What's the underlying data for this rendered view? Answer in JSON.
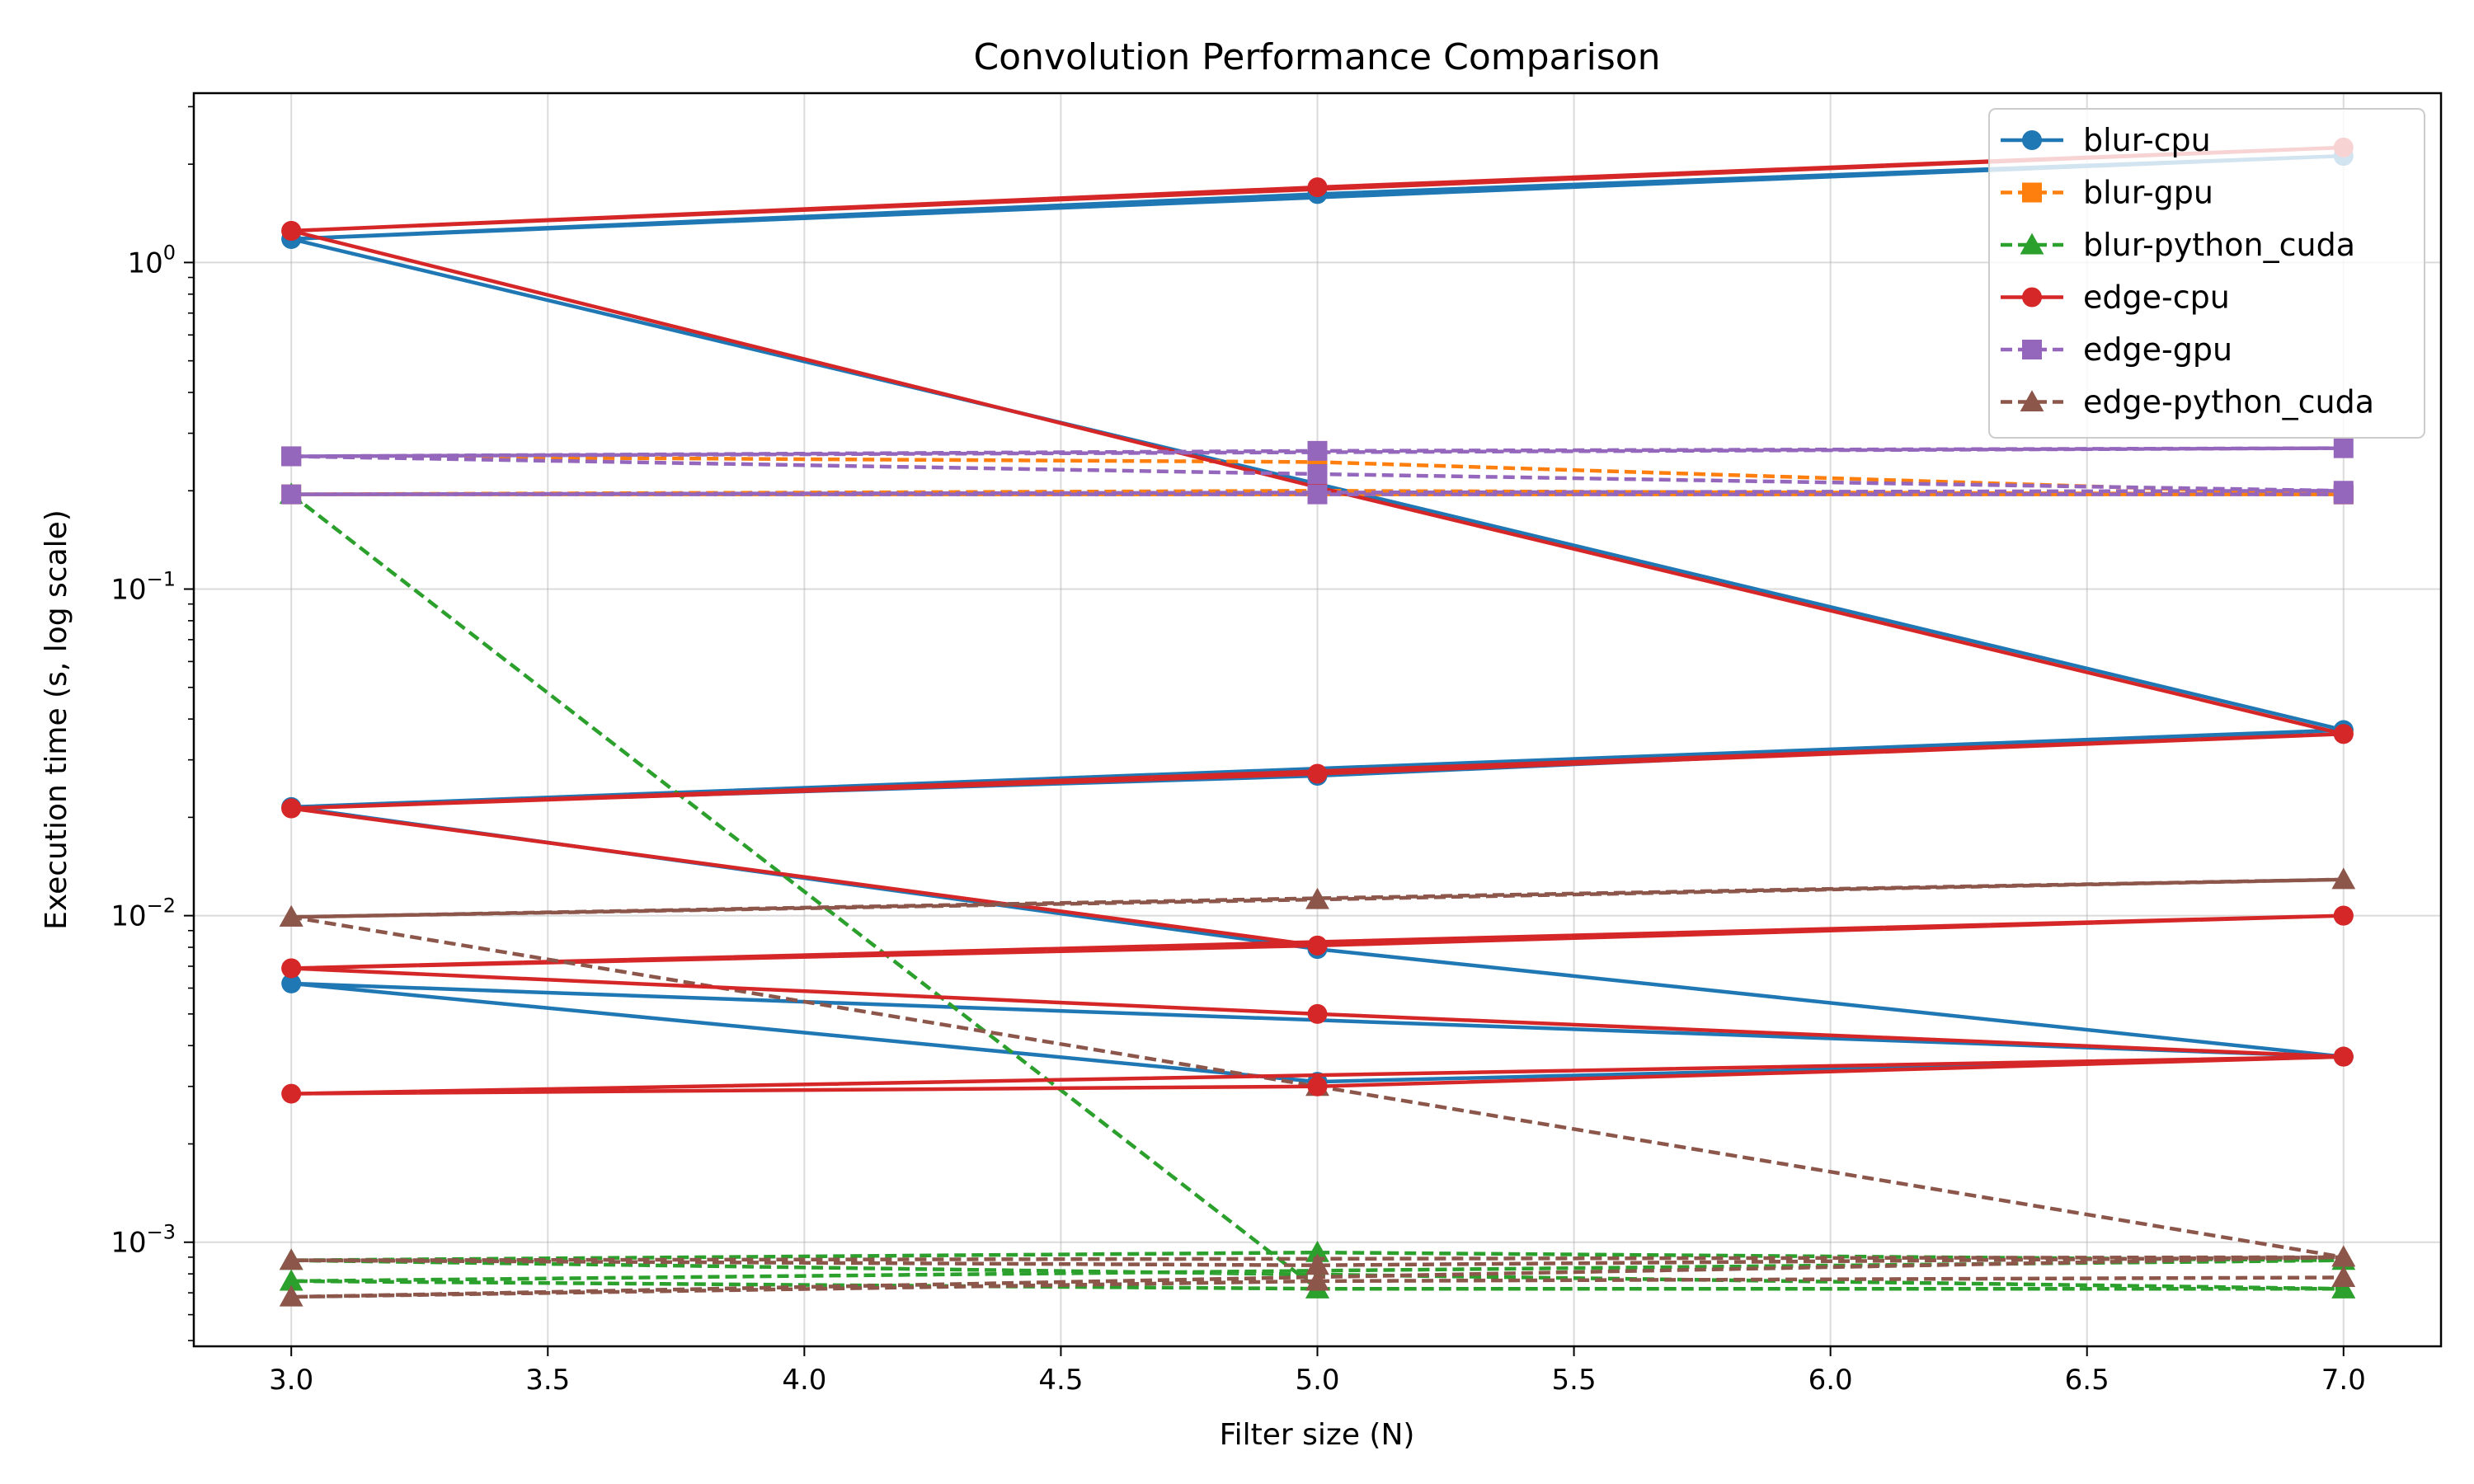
{
  "chart_data": {
    "type": "line",
    "title": "Convolution Performance Comparison",
    "xlabel": "Filter size (N)",
    "ylabel": "Execution time (s, log scale)",
    "xlim": [
      2.81,
      7.19
    ],
    "ylim": [
      0.00048,
      3.3
    ],
    "y_scale": "log",
    "x_ticks": [
      3.0,
      3.5,
      4.0,
      4.5,
      5.0,
      5.5,
      6.0,
      6.5,
      7.0
    ],
    "x_tick_labels": [
      "3.0",
      "3.5",
      "4.0",
      "4.5",
      "5.0",
      "5.5",
      "6.0",
      "6.5",
      "7.0"
    ],
    "y_major_ticks": [
      0.001,
      0.01,
      0.1,
      1
    ],
    "y_tick_labels": [
      {
        "base": "10",
        "exp": "−3"
      },
      {
        "base": "10",
        "exp": "−2"
      },
      {
        "base": "10",
        "exp": "−1"
      },
      {
        "base": "10",
        "exp": "0"
      }
    ],
    "grid": true,
    "legend_position": "top-right",
    "series": [
      {
        "name": "blur-cpu",
        "color": "#1f77b4",
        "marker": "circle",
        "dash": "solid",
        "x": [
          3,
          5,
          7,
          3,
          5,
          7,
          3,
          5,
          7,
          3,
          5,
          7,
          3,
          5,
          7
        ],
        "y": [
          1.18,
          1.62,
          2.12,
          1.18,
          0.21,
          0.037,
          0.0215,
          0.0268,
          0.037,
          0.0215,
          0.0079,
          0.0037,
          0.0062,
          0.0031,
          0.0037
        ]
      },
      {
        "name": "blur-gpu",
        "color": "#ff7f0e",
        "marker": "square",
        "dash": "dashed",
        "x": [
          3,
          5,
          7,
          3,
          5,
          7
        ],
        "y": [
          0.255,
          0.245,
          0.195,
          0.195,
          0.2,
          0.195
        ]
      },
      {
        "name": "blur-python_cuda",
        "color": "#2ca02c",
        "marker": "triangle",
        "dash": "dashed",
        "x": [
          3,
          5,
          7,
          3,
          5,
          7,
          3,
          5,
          7
        ],
        "y": [
          0.195,
          0.00072,
          0.00072,
          0.00088,
          0.00093,
          0.00088,
          0.00076,
          0.00072,
          0.00072
        ]
      },
      {
        "name": "edge-cpu",
        "color": "#d62728",
        "marker": "circle",
        "dash": "solid",
        "x": [
          3,
          5,
          7,
          3,
          5,
          7,
          3,
          5,
          7,
          3,
          5,
          7,
          3,
          5,
          7
        ],
        "y": [
          1.25,
          1.7,
          2.25,
          1.25,
          0.205,
          0.036,
          0.0213,
          0.0272,
          0.036,
          0.0213,
          0.0081,
          0.01,
          0.0069,
          0.0081,
          0.01
        ]
      },
      {
        "name": "edge-gpu",
        "color": "#9467bd",
        "marker": "square",
        "dash": "dashed",
        "x": [
          3,
          5,
          7,
          3,
          5,
          7,
          3,
          5,
          7
        ],
        "y": [
          0.255,
          0.265,
          0.27,
          0.255,
          0.225,
          0.2,
          0.195,
          0.195,
          0.195
        ]
      },
      {
        "name": "edge-python_cuda",
        "color": "#8c564b",
        "marker": "triangle",
        "dash": "dashed",
        "x": [
          3,
          5,
          7,
          3,
          5,
          7,
          3,
          5,
          7,
          3,
          5,
          7
        ],
        "y": [
          0.0099,
          0.0112,
          0.0129,
          0.0099,
          0.003,
          0.0009,
          0.00088,
          0.00085,
          0.0009,
          0.00068,
          0.00076,
          0.00078
        ]
      },
      {
        "name": "",
        "color": "#d62728",
        "marker": "circle",
        "dash": "solid",
        "legend": false,
        "x": [
          3,
          5,
          7,
          3,
          5,
          7
        ],
        "y": [
          0.0069,
          0.005,
          0.0037,
          0.00285,
          0.003,
          0.0037
        ]
      }
    ]
  }
}
